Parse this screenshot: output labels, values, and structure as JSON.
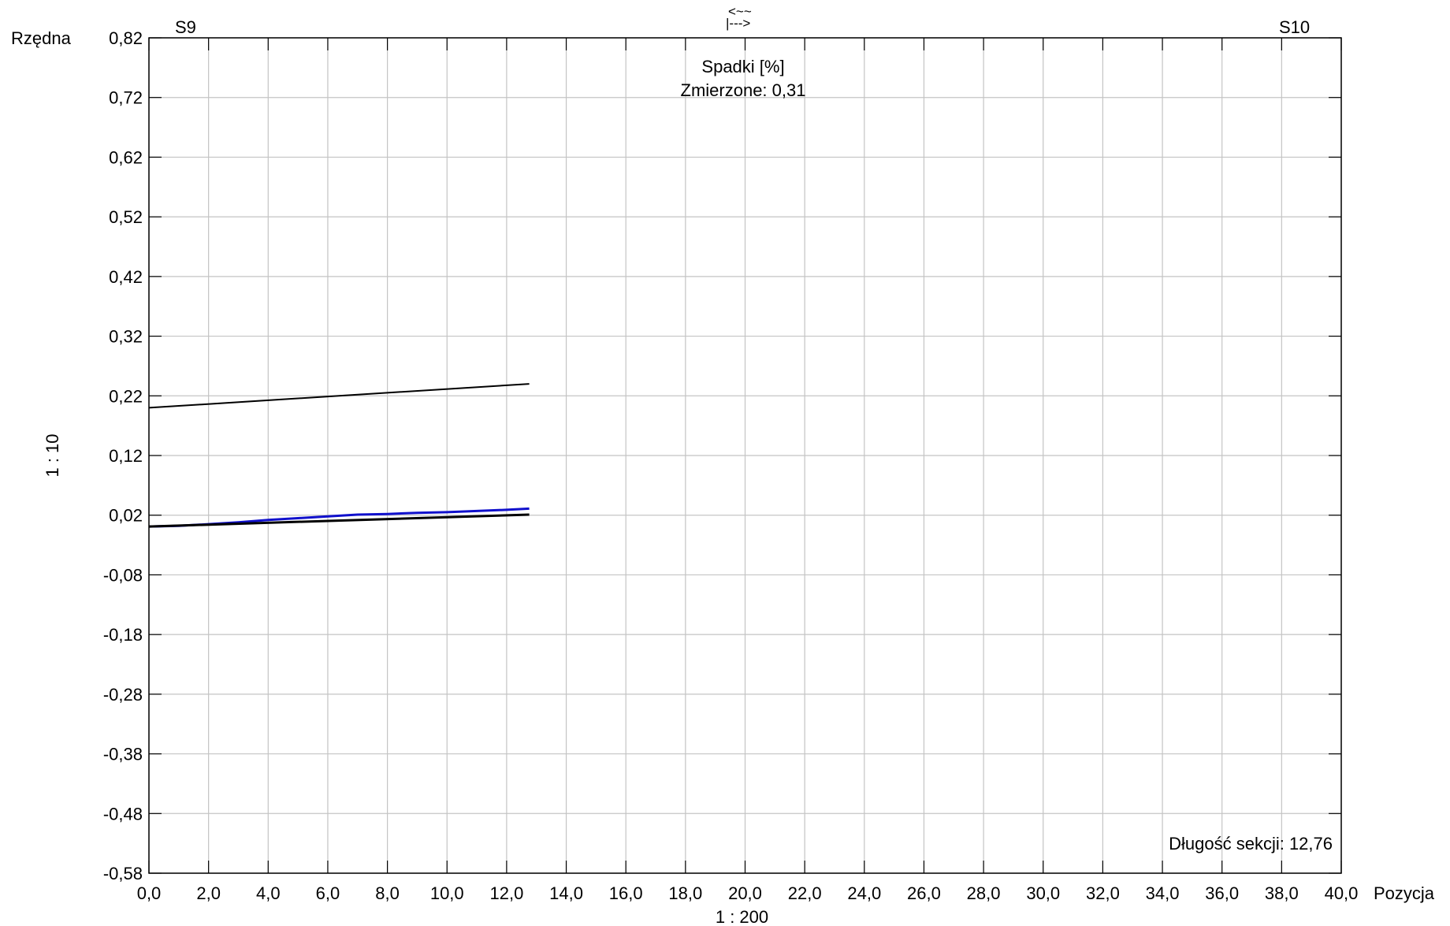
{
  "chart_data": {
    "type": "line",
    "xlabel": "Pozycja",
    "ylabel": "Rzędna",
    "x_scale_label": "1 : 200",
    "y_scale_label": "1 : 10",
    "xlim": [
      0,
      40
    ],
    "ylim": [
      -0.58,
      0.82
    ],
    "x_ticks": [
      0,
      2,
      4,
      6,
      8,
      10,
      12,
      14,
      16,
      18,
      20,
      22,
      24,
      26,
      28,
      30,
      32,
      34,
      36,
      38,
      40
    ],
    "x_tick_labels": [
      "0,0",
      "2,0",
      "4,0",
      "6,0",
      "8,0",
      "10,0",
      "12,0",
      "14,0",
      "16,0",
      "18,0",
      "20,0",
      "22,0",
      "24,0",
      "26,0",
      "28,0",
      "30,0",
      "32,0",
      "34,0",
      "36,0",
      "38,0",
      "40,0"
    ],
    "y_ticks": [
      0.82,
      0.72,
      0.62,
      0.52,
      0.42,
      0.32,
      0.22,
      0.12,
      0.02,
      -0.08,
      -0.18,
      -0.28,
      -0.38,
      -0.48,
      -0.58
    ],
    "y_tick_labels": [
      "0,82",
      "0,72",
      "0,62",
      "0,52",
      "0,42",
      "0,32",
      "0,22",
      "0,12",
      "0,02",
      "-0,08",
      "-0,18",
      "-0,28",
      "-0,38",
      "-0,48",
      "-0,58"
    ],
    "grid": true,
    "section_labels": {
      "start": "S9",
      "end": "S10"
    },
    "direction_marker": {
      "top": "<~~",
      "bottom": "|--->"
    },
    "annotation_title": "Spadki [%]",
    "annotation_measured": "Zmierzone: 0,31",
    "section_length": "Długość sekcji: 12,76",
    "series": [
      {
        "color": "#000000",
        "x": [
          0,
          12.76
        ],
        "y": [
          0.2,
          0.24
        ]
      },
      {
        "color": "#1010cc",
        "x": [
          0,
          1,
          2,
          3,
          4,
          5,
          6,
          7,
          8,
          9,
          10,
          11,
          12,
          12.76
        ],
        "y": [
          0.001,
          0.002,
          0.005,
          0.008,
          0.012,
          0.015,
          0.018,
          0.021,
          0.022,
          0.024,
          0.025,
          0.027,
          0.029,
          0.031
        ]
      },
      {
        "color": "#000000",
        "x": [
          0,
          12.76
        ],
        "y": [
          0.001,
          0.021
        ]
      }
    ]
  }
}
